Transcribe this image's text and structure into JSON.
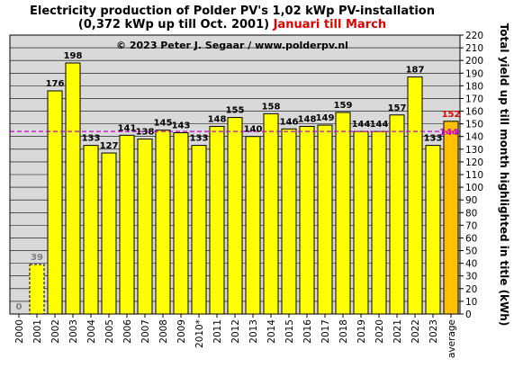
{
  "chart_data": {
    "type": "bar",
    "title_line1": "Electricity production  of Polder  PV's  1,02 kWp PV-installation",
    "title_line2_black": "(0,372 kWp up till Oct. 2001) ",
    "title_line2_red": "Januari till March",
    "copyright": "© 2023 Peter J. Segaar / www.polderpv.nl",
    "ylabel": "Total yield up till month highlighted in title (kWh)",
    "ylim": [
      0,
      220
    ],
    "ytick_step": 10,
    "yaxis_side": "right",
    "grid": "horizontal",
    "categories": [
      "2000",
      "2001",
      "2002",
      "2003",
      "2004",
      "2005",
      "2006",
      "2007",
      "2008",
      "2009",
      "2010*",
      "2011",
      "2012",
      "2013",
      "2014",
      "2015",
      "2016",
      "2017",
      "2018",
      "2019",
      "2020",
      "2021",
      "2022",
      "2023",
      "average"
    ],
    "values": [
      0,
      39,
      176,
      198,
      133,
      127,
      141,
      138,
      145,
      143,
      133,
      148,
      155,
      140,
      158,
      146,
      148,
      149,
      159,
      144,
      144,
      157,
      187,
      133,
      152
    ],
    "value_labels": [
      "0",
      "39",
      "176",
      "198",
      "133",
      "127",
      "141",
      "138",
      "145",
      "143",
      "133",
      "148",
      "155",
      "140",
      "158",
      "146",
      "148",
      "149",
      "159",
      "144",
      "144",
      "157",
      "187",
      "133",
      "152"
    ],
    "reference_line": {
      "value": 144,
      "label": "144",
      "color": "#cc00cc"
    },
    "colors": {
      "bar": "#ffff00",
      "bar_average": "#ffc000",
      "plot_background": "#d9d9d9",
      "value_label": "#000000",
      "value_label_muted": "#808080",
      "value_label_average": "#e00000"
    },
    "bar_styles": [
      "muted",
      "dashed",
      "normal",
      "normal",
      "normal",
      "normal",
      "normal",
      "normal",
      "normal",
      "normal",
      "normal",
      "normal",
      "normal",
      "normal",
      "normal",
      "normal",
      "normal",
      "normal",
      "normal",
      "normal",
      "normal",
      "normal",
      "normal",
      "normal",
      "average"
    ]
  }
}
